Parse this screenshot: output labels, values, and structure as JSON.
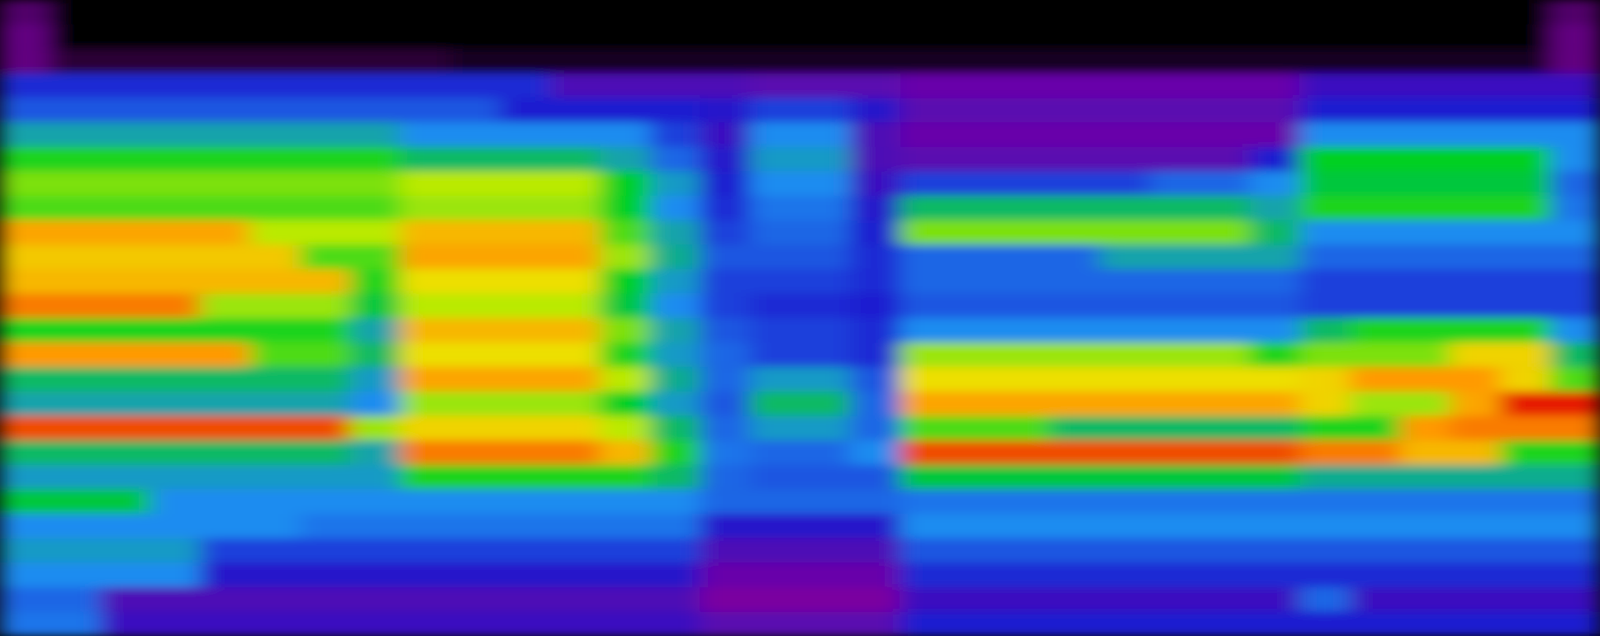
{
  "chart_data": {
    "type": "heatmap",
    "tick_labels": false,
    "zlim": [
      0,
      100
    ],
    "cells": [
      [
        10,
        0,
        0,
        0,
        0,
        0,
        0,
        0,
        0,
        0,
        0,
        0,
        0,
        0,
        0,
        0,
        0,
        0,
        0,
        0,
        0,
        0,
        0,
        0,
        0,
        0,
        0,
        0,
        0,
        0,
        0,
        10
      ],
      [
        12,
        0,
        0,
        0,
        0,
        0,
        0,
        0,
        0,
        0,
        0,
        0,
        0,
        0,
        0,
        0,
        0,
        0,
        0,
        0,
        0,
        0,
        0,
        0,
        0,
        0,
        0,
        0,
        0,
        0,
        0,
        12
      ],
      [
        12,
        5,
        5,
        5,
        5,
        5,
        5,
        5,
        5,
        3,
        3,
        3,
        3,
        3,
        3,
        3,
        3,
        3,
        3,
        3,
        3,
        3,
        3,
        3,
        3,
        3,
        3,
        3,
        3,
        3,
        3,
        12
      ],
      [
        32,
        32,
        32,
        32,
        32,
        32,
        32,
        32,
        32,
        32,
        32,
        22,
        22,
        22,
        22,
        20,
        20,
        20,
        18,
        18,
        18,
        18,
        18,
        18,
        18,
        18,
        25,
        25,
        25,
        25,
        25,
        25
      ],
      [
        38,
        38,
        38,
        38,
        38,
        38,
        38,
        38,
        38,
        38,
        30,
        30,
        30,
        30,
        28,
        35,
        35,
        28,
        20,
        20,
        20,
        20,
        20,
        20,
        20,
        20,
        30,
        30,
        30,
        30,
        30,
        30
      ],
      [
        50,
        50,
        50,
        50,
        50,
        50,
        50,
        50,
        45,
        45,
        45,
        45,
        45,
        35,
        25,
        45,
        45,
        22,
        18,
        18,
        18,
        18,
        18,
        18,
        18,
        18,
        45,
        45,
        45,
        45,
        45,
        45
      ],
      [
        62,
        62,
        62,
        62,
        62,
        62,
        62,
        62,
        55,
        55,
        55,
        55,
        50,
        40,
        28,
        48,
        48,
        22,
        20,
        20,
        20,
        20,
        20,
        20,
        20,
        30,
        60,
        60,
        60,
        60,
        60,
        45
      ],
      [
        68,
        68,
        68,
        68,
        68,
        68,
        68,
        68,
        72,
        72,
        72,
        72,
        60,
        48,
        30,
        45,
        45,
        25,
        35,
        35,
        35,
        35,
        35,
        40,
        40,
        45,
        58,
        58,
        58,
        58,
        58,
        40
      ],
      [
        65,
        65,
        65,
        65,
        65,
        65,
        65,
        65,
        70,
        70,
        70,
        70,
        60,
        45,
        32,
        42,
        42,
        28,
        55,
        55,
        55,
        55,
        55,
        55,
        55,
        50,
        62,
        62,
        62,
        62,
        62,
        42
      ],
      [
        88,
        88,
        88,
        88,
        88,
        72,
        72,
        72,
        85,
        85,
        85,
        85,
        65,
        50,
        35,
        40,
        40,
        30,
        68,
        68,
        68,
        68,
        68,
        68,
        68,
        55,
        45,
        45,
        45,
        45,
        45,
        45
      ],
      [
        82,
        82,
        82,
        82,
        82,
        82,
        65,
        65,
        88,
        88,
        88,
        88,
        70,
        52,
        38,
        38,
        38,
        32,
        40,
        40,
        40,
        40,
        50,
        50,
        50,
        50,
        40,
        40,
        40,
        40,
        40,
        40
      ],
      [
        85,
        85,
        85,
        85,
        85,
        85,
        85,
        62,
        78,
        78,
        78,
        78,
        60,
        48,
        35,
        35,
        35,
        32,
        40,
        40,
        40,
        40,
        40,
        40,
        40,
        40,
        35,
        35,
        35,
        35,
        35,
        35
      ],
      [
        92,
        92,
        92,
        92,
        70,
        70,
        70,
        58,
        72,
        72,
        72,
        72,
        58,
        45,
        35,
        32,
        32,
        30,
        38,
        38,
        38,
        38,
        38,
        38,
        38,
        38,
        35,
        35,
        35,
        35,
        35,
        35
      ],
      [
        62,
        62,
        62,
        62,
        62,
        62,
        62,
        50,
        85,
        85,
        85,
        85,
        68,
        50,
        38,
        35,
        35,
        32,
        45,
        45,
        45,
        45,
        45,
        45,
        45,
        45,
        55,
        62,
        62,
        62,
        62,
        45
      ],
      [
        90,
        90,
        90,
        90,
        90,
        65,
        65,
        55,
        78,
        78,
        78,
        78,
        62,
        48,
        40,
        35,
        35,
        32,
        70,
        70,
        70,
        70,
        70,
        70,
        70,
        62,
        68,
        68,
        68,
        80,
        80,
        55
      ],
      [
        55,
        55,
        55,
        55,
        55,
        55,
        55,
        48,
        88,
        88,
        88,
        88,
        72,
        52,
        40,
        48,
        48,
        38,
        78,
        78,
        78,
        78,
        78,
        78,
        78,
        78,
        80,
        90,
        90,
        90,
        80,
        65
      ],
      [
        50,
        50,
        50,
        50,
        50,
        50,
        50,
        45,
        70,
        70,
        70,
        70,
        60,
        48,
        38,
        55,
        55,
        40,
        88,
        88,
        88,
        88,
        88,
        88,
        88,
        88,
        80,
        70,
        70,
        88,
        98,
        98
      ],
      [
        95,
        95,
        95,
        95,
        95,
        95,
        95,
        70,
        80,
        80,
        80,
        80,
        72,
        55,
        40,
        48,
        48,
        40,
        65,
        65,
        65,
        55,
        55,
        55,
        55,
        55,
        62,
        62,
        90,
        92,
        92,
        92
      ],
      [
        55,
        55,
        55,
        55,
        55,
        55,
        55,
        50,
        92,
        92,
        92,
        92,
        85,
        62,
        42,
        40,
        40,
        45,
        95,
        95,
        95,
        95,
        95,
        95,
        95,
        95,
        92,
        92,
        85,
        85,
        62,
        62
      ],
      [
        48,
        48,
        48,
        48,
        48,
        48,
        48,
        48,
        62,
        62,
        62,
        62,
        62,
        55,
        40,
        38,
        38,
        38,
        58,
        58,
        58,
        58,
        58,
        58,
        58,
        58,
        52,
        52,
        52,
        52,
        52,
        52
      ],
      [
        58,
        58,
        58,
        45,
        45,
        45,
        45,
        45,
        45,
        45,
        45,
        45,
        45,
        45,
        40,
        40,
        40,
        40,
        42,
        42,
        42,
        42,
        42,
        42,
        42,
        42,
        42,
        42,
        42,
        42,
        42,
        42
      ],
      [
        45,
        45,
        45,
        45,
        45,
        45,
        42,
        42,
        42,
        42,
        42,
        42,
        42,
        42,
        28,
        28,
        28,
        28,
        45,
        45,
        45,
        45,
        45,
        45,
        45,
        45,
        45,
        45,
        45,
        45,
        45,
        45
      ],
      [
        48,
        48,
        48,
        48,
        35,
        35,
        35,
        35,
        35,
        35,
        35,
        35,
        35,
        35,
        22,
        22,
        22,
        22,
        38,
        38,
        38,
        38,
        38,
        38,
        38,
        38,
        38,
        38,
        38,
        38,
        38,
        38
      ],
      [
        45,
        45,
        45,
        45,
        28,
        28,
        28,
        28,
        28,
        28,
        28,
        28,
        28,
        28,
        18,
        18,
        18,
        18,
        32,
        32,
        32,
        32,
        32,
        32,
        32,
        32,
        32,
        32,
        32,
        32,
        32,
        32
      ],
      [
        40,
        40,
        22,
        22,
        22,
        22,
        22,
        22,
        22,
        22,
        22,
        22,
        22,
        22,
        15,
        15,
        15,
        15,
        25,
        25,
        25,
        25,
        25,
        25,
        25,
        25,
        40,
        25,
        25,
        25,
        25,
        25
      ],
      [
        42,
        42,
        25,
        25,
        25,
        25,
        25,
        25,
        25,
        25,
        25,
        25,
        25,
        25,
        20,
        20,
        20,
        20,
        30,
        30,
        30,
        30,
        30,
        30,
        30,
        30,
        30,
        30,
        30,
        30,
        30,
        30
      ]
    ]
  }
}
